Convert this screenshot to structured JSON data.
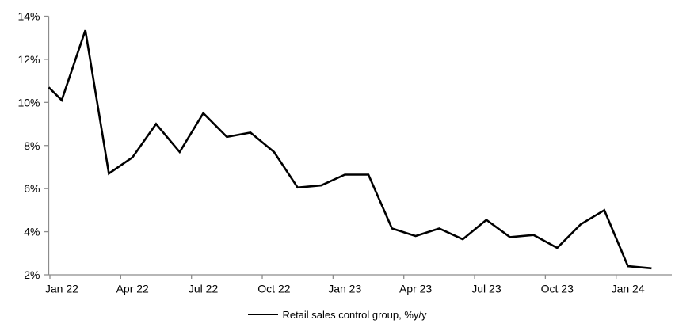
{
  "chart_data": {
    "type": "line",
    "title": "",
    "legend": "Retail sales control group, %y/y",
    "legend_position": "bottom",
    "x": [
      "Jan 22",
      "Feb 22",
      "Mar 22",
      "Apr 22",
      "May 22",
      "Jun 22",
      "Jul 22",
      "Aug 22",
      "Sep 22",
      "Oct 22",
      "Nov 22",
      "Dec 22",
      "Jan 23",
      "Feb 23",
      "Mar 23",
      "Apr 23",
      "May 23",
      "Jun 23",
      "Jul 23",
      "Aug 23",
      "Sep 23",
      "Oct 23",
      "Nov 23",
      "Dec 23",
      "Jan 24",
      "Feb 24"
    ],
    "series": [
      {
        "name": "Retail sales control group, %y/y",
        "color": "#000000",
        "values": [
          10.1,
          13.35,
          6.7,
          7.45,
          9.0,
          7.7,
          9.5,
          8.4,
          8.6,
          7.7,
          6.05,
          6.15,
          6.65,
          6.65,
          4.15,
          3.8,
          4.15,
          3.65,
          4.55,
          3.75,
          3.85,
          3.25,
          4.35,
          5.0,
          2.4,
          2.3
        ]
      }
    ],
    "edge_leadin_value": 10.7,
    "ylim": [
      2,
      14
    ],
    "y_tick_step": 2,
    "y_tick_labels": [
      "2%",
      "4%",
      "6%",
      "8%",
      "10%",
      "12%",
      "14%"
    ],
    "x_tick_labels": [
      "Jan 22",
      "Apr 22",
      "Jul 22",
      "Oct 22",
      "Jan 23",
      "Apr 23",
      "Jul 23",
      "Oct 23",
      "Jan 24"
    ],
    "x_tick_every": 3,
    "grid": false,
    "axis_color": "#8c8c8c",
    "text_color": "#000000",
    "background": "#ffffff"
  }
}
